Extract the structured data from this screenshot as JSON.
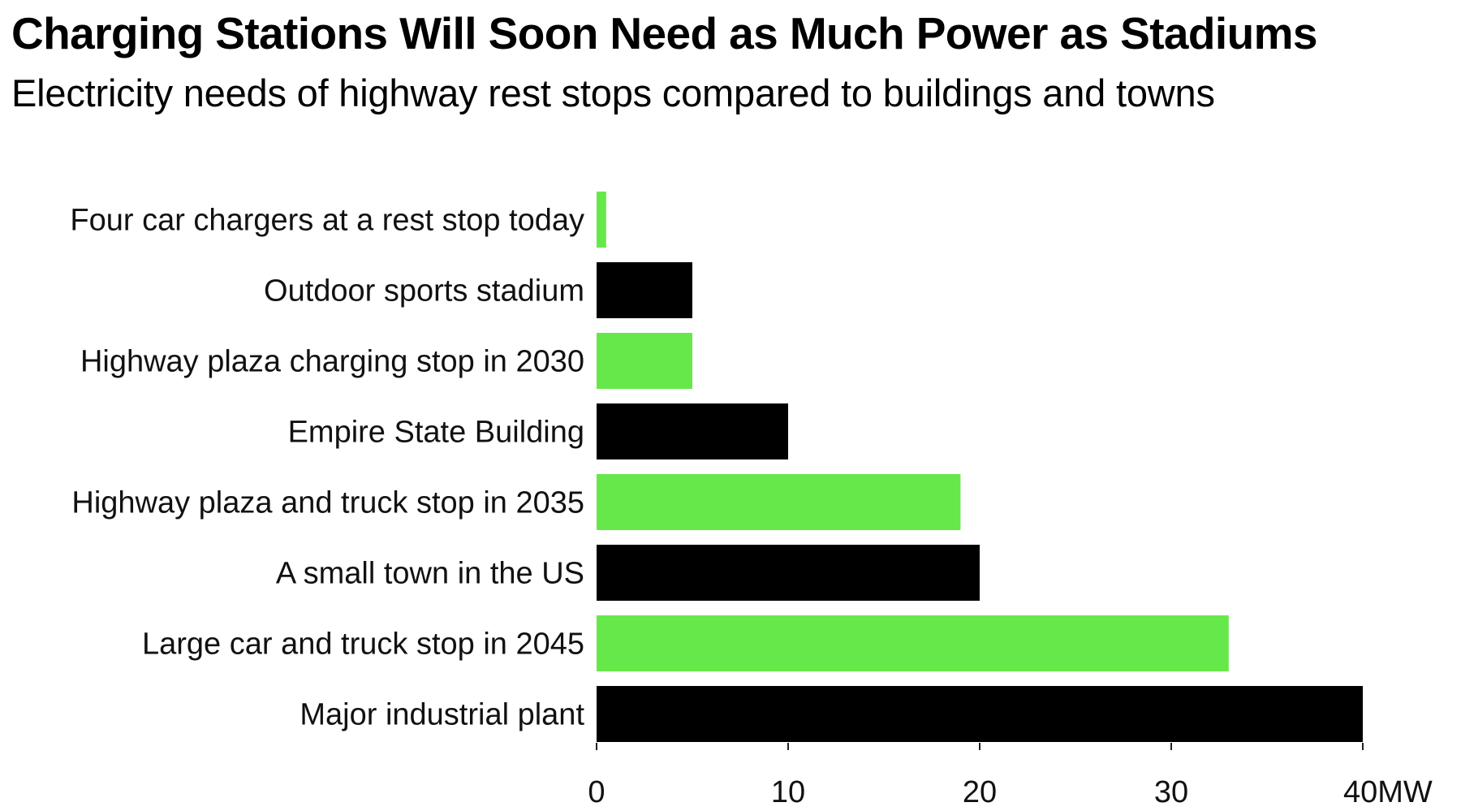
{
  "header": {
    "title": "Charging Stations Will Soon Need as Much Power as Stadiums",
    "subtitle": "Electricity needs of highway rest stops compared to buildings and towns"
  },
  "colors": {
    "highlight": "#66E84A",
    "reference": "#000000",
    "axis": "#222222"
  },
  "chart_data": {
    "type": "bar",
    "orientation": "horizontal",
    "title": "Charging Stations Will Soon Need as Much Power as Stadiums",
    "subtitle": "Electricity needs of highway rest stops compared to buildings and towns",
    "xlabel": "",
    "ylabel": "",
    "unit": "MW",
    "xlim": [
      0,
      40
    ],
    "grid": false,
    "legend": "none",
    "categories": [
      "Four car chargers at a rest stop today",
      "Outdoor sports stadium",
      "Highway plaza charging stop in 2030",
      "Empire State Building",
      "Highway plaza and truck stop in 2035",
      "A small town in the US",
      "Large car and truck stop in 2045",
      "Major industrial plant"
    ],
    "values": [
      0.5,
      5,
      5,
      10,
      19,
      20,
      33,
      40
    ],
    "bar_groups": [
      "charging",
      "reference",
      "charging",
      "reference",
      "charging",
      "reference",
      "charging",
      "reference"
    ],
    "x_ticks": [
      0,
      10,
      20,
      30,
      40
    ],
    "x_tick_labels": [
      "0",
      "10",
      "20",
      "30",
      "40MW"
    ]
  }
}
